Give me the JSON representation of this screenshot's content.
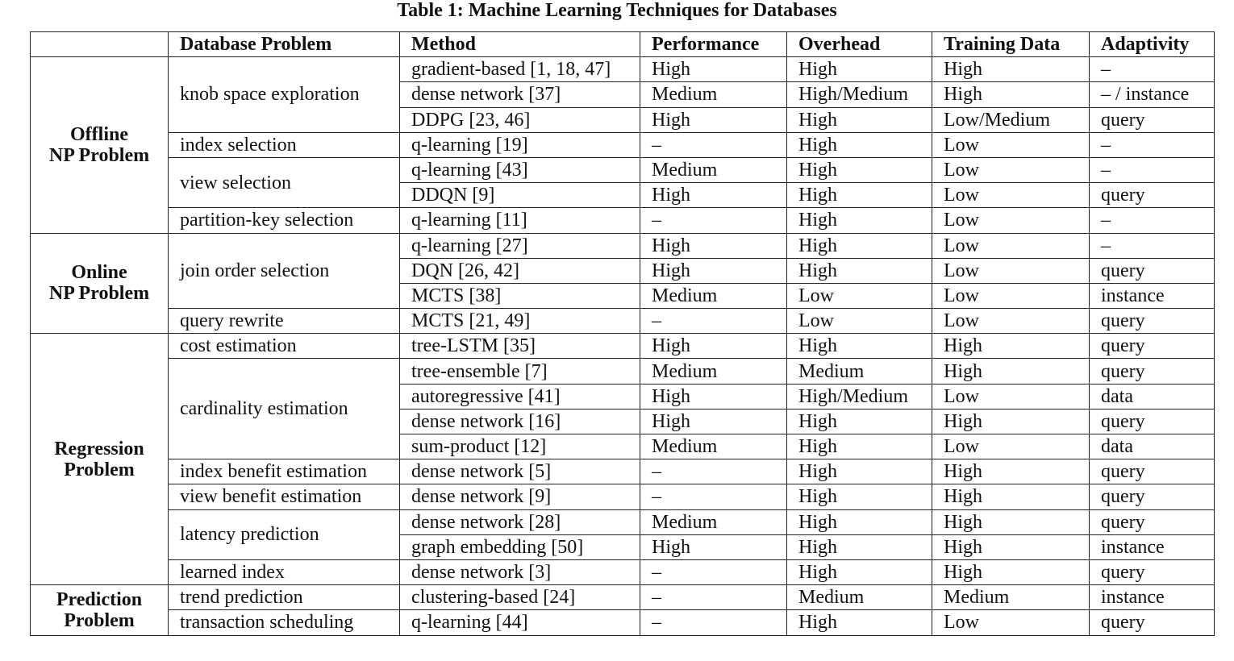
{
  "caption": "Table 1: Machine Learning Techniques for Databases",
  "headers": [
    "",
    "Database Problem",
    "Method",
    "Performance",
    "Overhead",
    "Training Data",
    "Adaptivity"
  ],
  "groups": [
    {
      "lines": [
        "Offline",
        "NP Problem"
      ],
      "problems": [
        {
          "name": "knob space exploration",
          "rows": [
            [
              "gradient-based [1, 18, 47]",
              "High",
              "High",
              "High",
              "–"
            ],
            [
              "dense network [37]",
              "Medium",
              "High/Medium",
              "High",
              "– / instance"
            ],
            [
              "DDPG [23, 46]",
              "High",
              "High",
              "Low/Medium",
              "query"
            ]
          ]
        },
        {
          "name": "index selection",
          "rows": [
            [
              "q-learning [19]",
              "–",
              "High",
              "Low",
              "–"
            ]
          ]
        },
        {
          "name": "view selection",
          "rows": [
            [
              "q-learning [43]",
              "Medium",
              "High",
              "Low",
              "–"
            ],
            [
              "DDQN [9]",
              "High",
              "High",
              "Low",
              "query"
            ]
          ]
        },
        {
          "name": "partition-key selection",
          "rows": [
            [
              "q-learning [11]",
              "–",
              "High",
              "Low",
              "–"
            ]
          ]
        }
      ]
    },
    {
      "lines": [
        "Online",
        "NP Problem"
      ],
      "problems": [
        {
          "name": "join order selection",
          "rows": [
            [
              "q-learning [27]",
              "High",
              "High",
              "Low",
              "–"
            ],
            [
              "DQN [26, 42]",
              "High",
              "High",
              "Low",
              "query"
            ],
            [
              "MCTS [38]",
              "Medium",
              "Low",
              "Low",
              "instance"
            ]
          ]
        },
        {
          "name": "query rewrite",
          "rows": [
            [
              "MCTS [21, 49]",
              "–",
              "Low",
              "Low",
              "query"
            ]
          ]
        }
      ]
    },
    {
      "lines": [
        "Regression",
        "Problem"
      ],
      "problems": [
        {
          "name": "cost estimation",
          "rows": [
            [
              "tree-LSTM [35]",
              "High",
              "High",
              "High",
              "query"
            ]
          ]
        },
        {
          "name": "cardinality estimation",
          "rows": [
            [
              "tree-ensemble [7]",
              "Medium",
              "Medium",
              "High",
              "query"
            ],
            [
              "autoregressive [41]",
              "High",
              "High/Medium",
              "Low",
              "data"
            ],
            [
              "dense network [16]",
              "High",
              "High",
              "High",
              "query"
            ],
            [
              "sum-product [12]",
              "Medium",
              "High",
              "Low",
              "data"
            ]
          ]
        },
        {
          "name": "index benefit estimation",
          "rows": [
            [
              "dense network [5]",
              "–",
              "High",
              "High",
              "query"
            ]
          ]
        },
        {
          "name": "view benefit estimation",
          "rows": [
            [
              "dense network [9]",
              "–",
              "High",
              "High",
              "query"
            ]
          ]
        },
        {
          "name": "latency prediction",
          "rows": [
            [
              "dense network [28]",
              "Medium",
              "High",
              "High",
              "query"
            ],
            [
              "graph embedding [50]",
              "High",
              "High",
              "High",
              "instance"
            ]
          ]
        },
        {
          "name": "learned index",
          "rows": [
            [
              "dense network [3]",
              "–",
              "High",
              "High",
              "query"
            ]
          ]
        }
      ]
    },
    {
      "lines": [
        "Prediction",
        "Problem"
      ],
      "problems": [
        {
          "name": "trend prediction",
          "rows": [
            [
              "clustering-based [24]",
              "–",
              "Medium",
              "Medium",
              "instance"
            ]
          ]
        },
        {
          "name": "transaction scheduling",
          "rows": [
            [
              "q-learning [44]",
              "–",
              "High",
              "Low",
              "query"
            ]
          ]
        }
      ]
    }
  ]
}
